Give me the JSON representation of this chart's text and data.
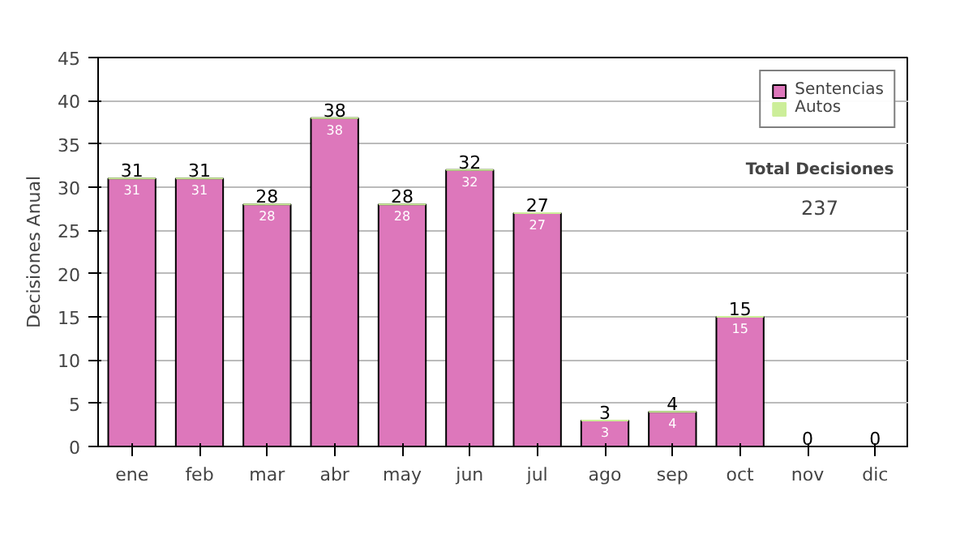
{
  "chart_data": {
    "type": "bar",
    "stacked": true,
    "ylabel": "Decisiones Anual",
    "categories": [
      "ene",
      "feb",
      "mar",
      "abr",
      "may",
      "jun",
      "jul",
      "ago",
      "sep",
      "oct",
      "nov",
      "dic"
    ],
    "series": [
      {
        "name": "Sentencias",
        "color": "#dd77bb",
        "values": [
          31,
          31,
          28,
          38,
          28,
          32,
          27,
          3,
          4,
          15,
          0,
          0
        ],
        "value_labels": [
          "31",
          "31",
          "28",
          "38",
          "28",
          "32",
          "27",
          "3",
          "4",
          "15",
          null,
          null
        ]
      },
      {
        "name": "Autos",
        "color": "#ccee99",
        "values": [
          0,
          0,
          0,
          0,
          0,
          0,
          0,
          0,
          0,
          0,
          0,
          0
        ]
      }
    ],
    "totals": [
      "31",
      "31",
      "28",
      "38",
      "28",
      "32",
      "27",
      "3",
      "4",
      "15",
      "0",
      "0"
    ],
    "ylim": [
      0,
      45
    ],
    "yticks": [
      0,
      5,
      10,
      15,
      20,
      25,
      30,
      35,
      40,
      45
    ],
    "grid": "y",
    "legend": "top right",
    "annotations": [
      "Total Decisiones",
      "237"
    ]
  }
}
